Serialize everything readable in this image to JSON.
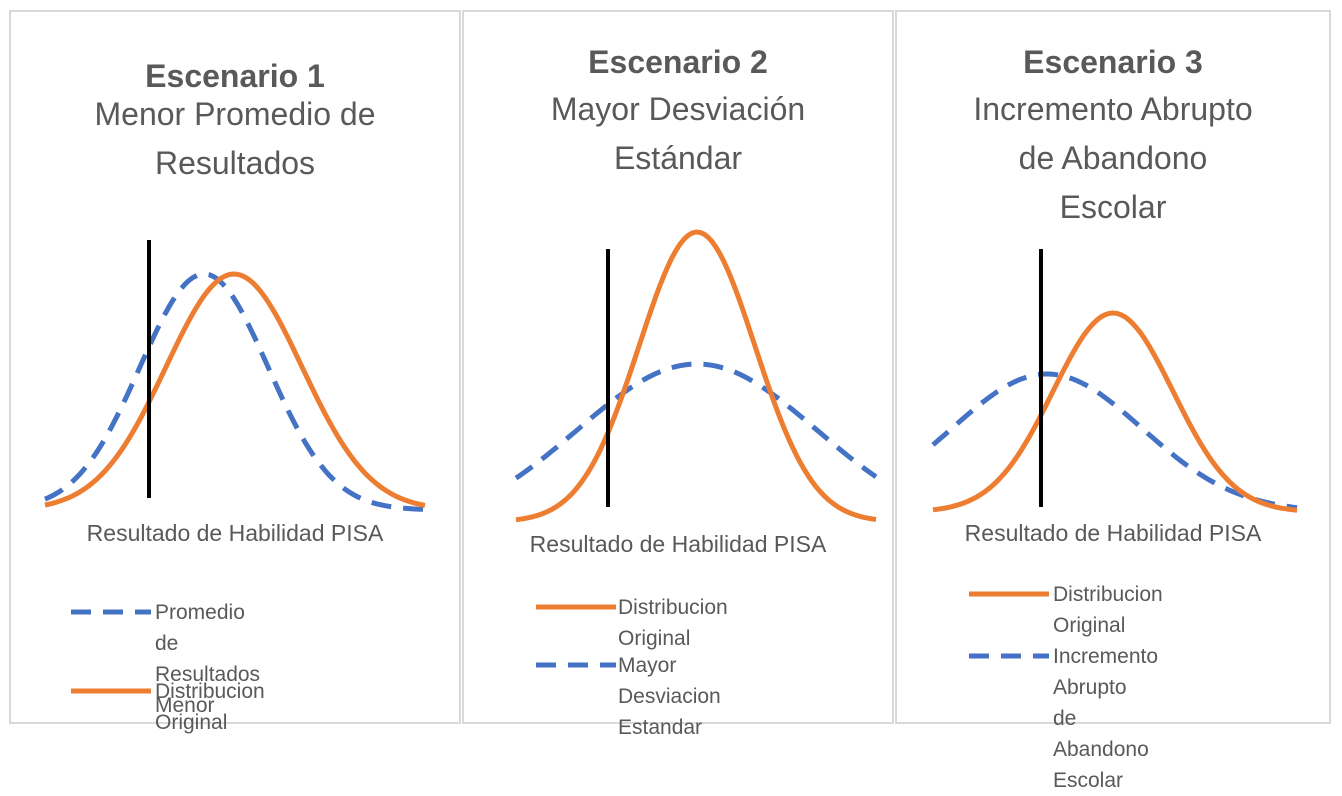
{
  "scenarios": [
    {
      "heading": "Escenario 1",
      "subtitle": "Menor Promedio de\nResultados",
      "xlabel": "Resultado de Habilidad PISA",
      "legend": [
        {
          "label": "Promedio de Resultados\nMenor",
          "style": "dashed",
          "color": "#4472C4"
        },
        {
          "label": "Distribucion Original",
          "style": "solid",
          "color": "#ED7D31"
        }
      ]
    },
    {
      "heading": "Escenario 2",
      "subtitle": "Mayor Desviación\nEstándar",
      "xlabel": "Resultado de Habilidad PISA",
      "legend": [
        {
          "label": "Distribucion Original",
          "style": "solid",
          "color": "#ED7D31"
        },
        {
          "label": "Mayor Desviacion\nEstandar",
          "style": "dashed",
          "color": "#4472C4"
        }
      ]
    },
    {
      "heading": "Escenario 3",
      "subtitle": "Incremento Abrupto\nde Abandono\nEscolar",
      "xlabel": "Resultado de Habilidad PISA",
      "legend": [
        {
          "label": "Distribucion Original",
          "style": "solid",
          "color": "#ED7D31"
        },
        {
          "label": "Incremento Abrupto\nde Abandono Escolar",
          "style": "dashed",
          "color": "#4472C4"
        }
      ]
    }
  ],
  "colors": {
    "orange": "#ED7D31",
    "blue": "#4472C4",
    "threshold": "#000000"
  }
}
